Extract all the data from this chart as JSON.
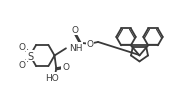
{
  "bg_color": "#ffffff",
  "line_color": "#3a3a3a",
  "line_width": 1.3,
  "figsize": [
    1.86,
    1.13
  ],
  "dpi": 100,
  "xlim": [
    0,
    22
  ],
  "ylim": [
    0,
    13
  ]
}
